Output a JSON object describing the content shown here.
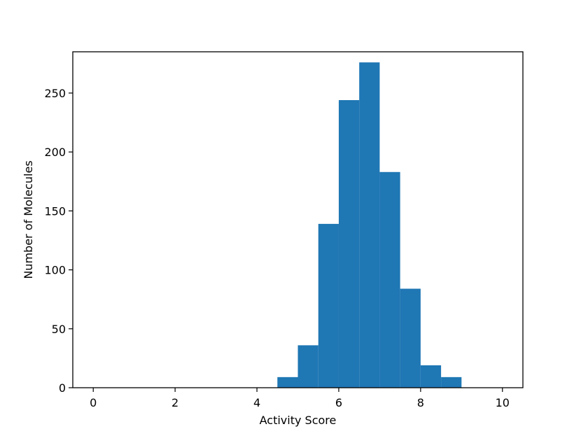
{
  "chart_data": {
    "type": "bar",
    "title": "",
    "xlabel": "Activity Score",
    "ylabel": "Number of Molecules",
    "xlim": [
      -0.5,
      10.5
    ],
    "ylim": [
      0,
      285
    ],
    "xticks": [
      0,
      2,
      4,
      6,
      8,
      10
    ],
    "yticks": [
      0,
      50,
      100,
      150,
      200,
      250
    ],
    "bar_color": "#1f77b4",
    "grid": false,
    "legend": "none",
    "bins": [
      {
        "x0": 4.5,
        "x1": 5.0,
        "value": 9
      },
      {
        "x0": 5.0,
        "x1": 5.5,
        "value": 36
      },
      {
        "x0": 5.5,
        "x1": 6.0,
        "value": 139
      },
      {
        "x0": 6.0,
        "x1": 6.5,
        "value": 244
      },
      {
        "x0": 6.5,
        "x1": 7.0,
        "value": 276
      },
      {
        "x0": 7.0,
        "x1": 7.5,
        "value": 183
      },
      {
        "x0": 7.5,
        "x1": 8.0,
        "value": 84
      },
      {
        "x0": 8.0,
        "x1": 8.5,
        "value": 19
      },
      {
        "x0": 8.5,
        "x1": 9.0,
        "value": 9
      }
    ]
  }
}
